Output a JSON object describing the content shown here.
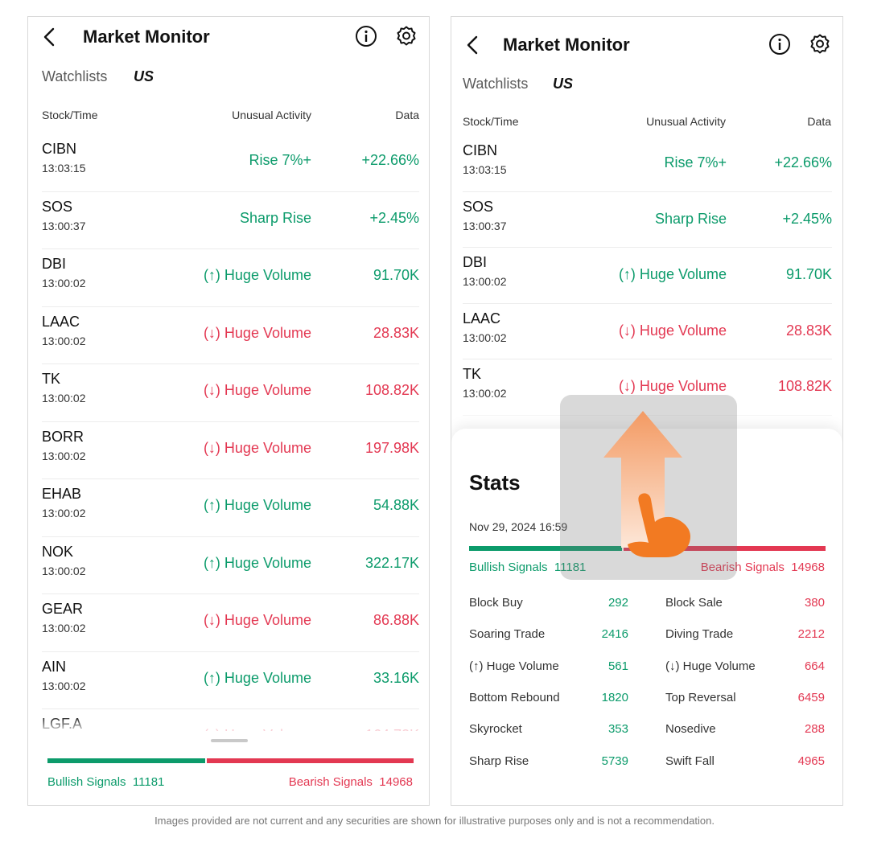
{
  "app": {
    "title": "Market Monitor",
    "tabs": [
      "Watchlists",
      "US"
    ],
    "columns": [
      "Stock/Time",
      "Unusual Activity",
      "Data"
    ]
  },
  "left": {
    "rows": [
      {
        "symbol": "CIBN",
        "time": "13:03:15",
        "activity": "Rise 7%+",
        "value": "+22.66%",
        "tone": "up"
      },
      {
        "symbol": "SOS",
        "time": "13:00:37",
        "activity": "Sharp Rise",
        "value": "+2.45%",
        "tone": "up"
      },
      {
        "symbol": "DBI",
        "time": "13:00:02",
        "activity": "(↑) Huge Volume",
        "value": "91.70K",
        "tone": "up"
      },
      {
        "symbol": "LAAC",
        "time": "13:00:02",
        "activity": "(↓) Huge Volume",
        "value": "28.83K",
        "tone": "down"
      },
      {
        "symbol": "TK",
        "time": "13:00:02",
        "activity": "(↓) Huge Volume",
        "value": "108.82K",
        "tone": "down"
      },
      {
        "symbol": "BORR",
        "time": "13:00:02",
        "activity": "(↓) Huge Volume",
        "value": "197.98K",
        "tone": "down"
      },
      {
        "symbol": "EHAB",
        "time": "13:00:02",
        "activity": "(↑) Huge Volume",
        "value": "54.88K",
        "tone": "up"
      },
      {
        "symbol": "NOK",
        "time": "13:00:02",
        "activity": "(↑) Huge Volume",
        "value": "322.17K",
        "tone": "up"
      },
      {
        "symbol": "GEAR",
        "time": "13:00:02",
        "activity": "(↓) Huge Volume",
        "value": "86.88K",
        "tone": "down"
      },
      {
        "symbol": "AIN",
        "time": "13:00:02",
        "activity": "(↑) Huge Volume",
        "value": "33.16K",
        "tone": "up"
      },
      {
        "symbol": "LGF.A",
        "time": "",
        "activity": "(↓) Huge Volume",
        "value": "164.72K",
        "tone": "down"
      }
    ],
    "signals": {
      "bullish_label": "Bullish Signals",
      "bullish": "11181",
      "bearish_label": "Bearish Signals",
      "bearish": "14968",
      "bullish_fraction": 0.43
    }
  },
  "right": {
    "rows": [
      {
        "symbol": "CIBN",
        "time": "13:03:15",
        "activity": "Rise 7%+",
        "value": "+22.66%",
        "tone": "up"
      },
      {
        "symbol": "SOS",
        "time": "13:00:37",
        "activity": "Sharp Rise",
        "value": "+2.45%",
        "tone": "up"
      },
      {
        "symbol": "DBI",
        "time": "13:00:02",
        "activity": "(↑) Huge Volume",
        "value": "91.70K",
        "tone": "up"
      },
      {
        "symbol": "LAAC",
        "time": "13:00:02",
        "activity": "(↓) Huge Volume",
        "value": "28.83K",
        "tone": "down"
      },
      {
        "symbol": "TK",
        "time": "13:00:02",
        "activity": "(↓) Huge Volume",
        "value": "108.82K",
        "tone": "down"
      }
    ],
    "stats": {
      "title": "Stats",
      "date": "Nov 29, 2024 16:59",
      "bullish_label": "Bullish Signals",
      "bullish": "11181",
      "bearish_label": "Bearish Signals",
      "bearish": "14968",
      "bullish_fraction": 0.43,
      "items": [
        {
          "left_label": "Block Buy",
          "left_value": "292",
          "right_label": "Block Sale",
          "right_value": "380"
        },
        {
          "left_label": "Soaring Trade",
          "left_value": "2416",
          "right_label": "Diving Trade",
          "right_value": "2212"
        },
        {
          "left_label": "(↑) Huge Volume",
          "left_value": "561",
          "right_label": "(↓) Huge Volume",
          "right_value": "664"
        },
        {
          "left_label": "Bottom Rebound",
          "left_value": "1820",
          "right_label": "Top Reversal",
          "right_value": "6459"
        },
        {
          "left_label": "Skyrocket",
          "left_value": "353",
          "right_label": "Nosedive",
          "right_value": "288"
        },
        {
          "left_label": "Sharp Rise",
          "left_value": "5739",
          "right_label": "Swift Fall",
          "right_value": "4965"
        }
      ]
    }
  },
  "footer": "Images provided are not current and any securities are shown for illustrative purposes only and is not a recommendation.",
  "colors": {
    "up": "#0c9b6b",
    "down": "#e33852",
    "accent": "#f26b1d"
  }
}
